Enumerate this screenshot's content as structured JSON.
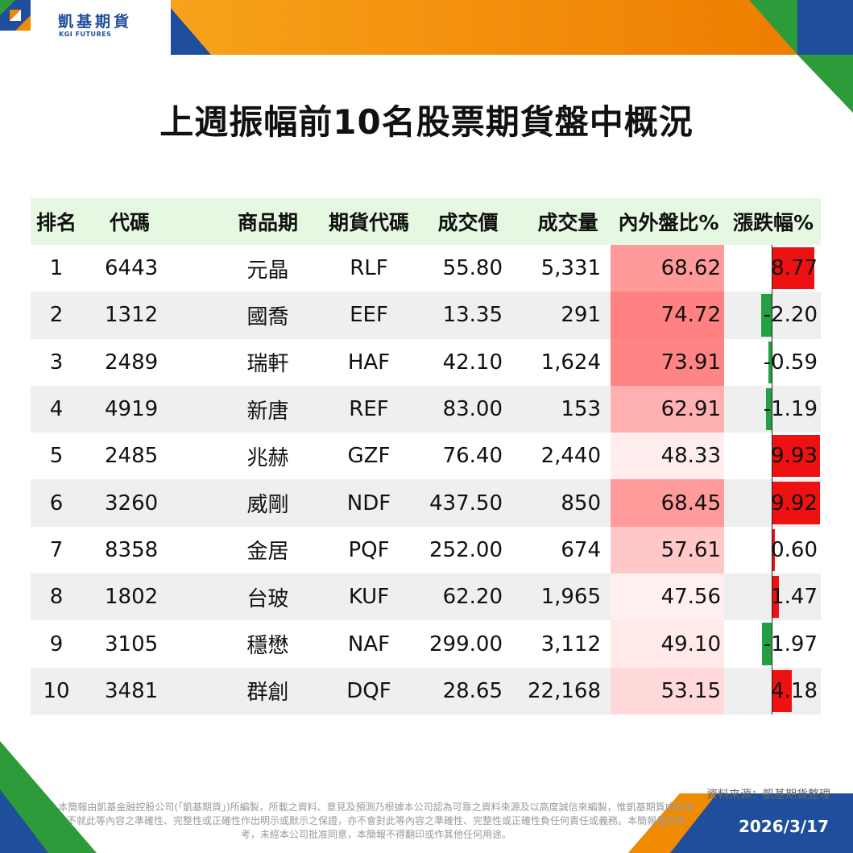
{
  "brand": {
    "name_zh": "凱基期貨",
    "name_en": "KGI FUTURES",
    "colors": {
      "blue": "#1f4e9c",
      "orange": "#f08a00",
      "green": "#2e9b3a"
    }
  },
  "title": "上週振幅前10名股票期貨盤中概況",
  "table": {
    "headers": {
      "rank": "排名",
      "code": "代碼",
      "name": "商品期",
      "futures_code": "期貨代碼",
      "price": "成交價",
      "volume": "成交量",
      "ratio": "內外盤比%",
      "change": "漲跌幅%"
    },
    "rows": [
      {
        "rank": "1",
        "code": "6443",
        "name": "元晶",
        "futures_code": "RLF",
        "price": "55.80",
        "volume": "5,331",
        "ratio": "68.62",
        "ratio_value": 68.62,
        "change": "8.77",
        "change_value": 8.77
      },
      {
        "rank": "2",
        "code": "1312",
        "name": "國喬",
        "futures_code": "EEF",
        "price": "13.35",
        "volume": "291",
        "ratio": "74.72",
        "ratio_value": 74.72,
        "change": "-2.20",
        "change_value": -2.2
      },
      {
        "rank": "3",
        "code": "2489",
        "name": "瑞軒",
        "futures_code": "HAF",
        "price": "42.10",
        "volume": "1,624",
        "ratio": "73.91",
        "ratio_value": 73.91,
        "change": "-0.59",
        "change_value": -0.59
      },
      {
        "rank": "4",
        "code": "4919",
        "name": "新唐",
        "futures_code": "REF",
        "price": "83.00",
        "volume": "153",
        "ratio": "62.91",
        "ratio_value": 62.91,
        "change": "-1.19",
        "change_value": -1.19
      },
      {
        "rank": "5",
        "code": "2485",
        "name": "兆赫",
        "futures_code": "GZF",
        "price": "76.40",
        "volume": "2,440",
        "ratio": "48.33",
        "ratio_value": 48.33,
        "change": "9.93",
        "change_value": 9.93
      },
      {
        "rank": "6",
        "code": "3260",
        "name": "威剛",
        "futures_code": "NDF",
        "price": "437.50",
        "volume": "850",
        "ratio": "68.45",
        "ratio_value": 68.45,
        "change": "9.92",
        "change_value": 9.92
      },
      {
        "rank": "7",
        "code": "8358",
        "name": "金居",
        "futures_code": "PQF",
        "price": "252.00",
        "volume": "674",
        "ratio": "57.61",
        "ratio_value": 57.61,
        "change": "0.60",
        "change_value": 0.6
      },
      {
        "rank": "8",
        "code": "1802",
        "name": "台玻",
        "futures_code": "KUF",
        "price": "62.20",
        "volume": "1,965",
        "ratio": "47.56",
        "ratio_value": 47.56,
        "change": "1.47",
        "change_value": 1.47
      },
      {
        "rank": "9",
        "code": "3105",
        "name": "穩懋",
        "futures_code": "NAF",
        "price": "299.00",
        "volume": "3,112",
        "ratio": "49.10",
        "ratio_value": 49.1,
        "change": "-1.97",
        "change_value": -1.97
      },
      {
        "rank": "10",
        "code": "3481",
        "name": "群創",
        "futures_code": "DQF",
        "price": "28.65",
        "volume": "22,168",
        "ratio": "53.15",
        "ratio_value": 53.15,
        "change": "4.18",
        "change_value": 4.18
      }
    ]
  },
  "footer": {
    "source": "資料來源：凱基期貨整理",
    "disclaimer": "本簡報由凱基金融控股公司(「凱基期貨」)所編製，所載之資料、意見及預測乃根據本公司認為可靠之資料來源及以高度誠信來編製，惟凱基期貨成員並不就此等內容之準確性、完整性或正確性作出明示或默示之保證，亦不會對此等內容之準確性、完整性或正確性負任何責任或義務。本簡報僅供參考，未經本公司批准同意，本簡報不得翻印或作其他任何用途。",
    "date": "2026/3/17"
  }
}
